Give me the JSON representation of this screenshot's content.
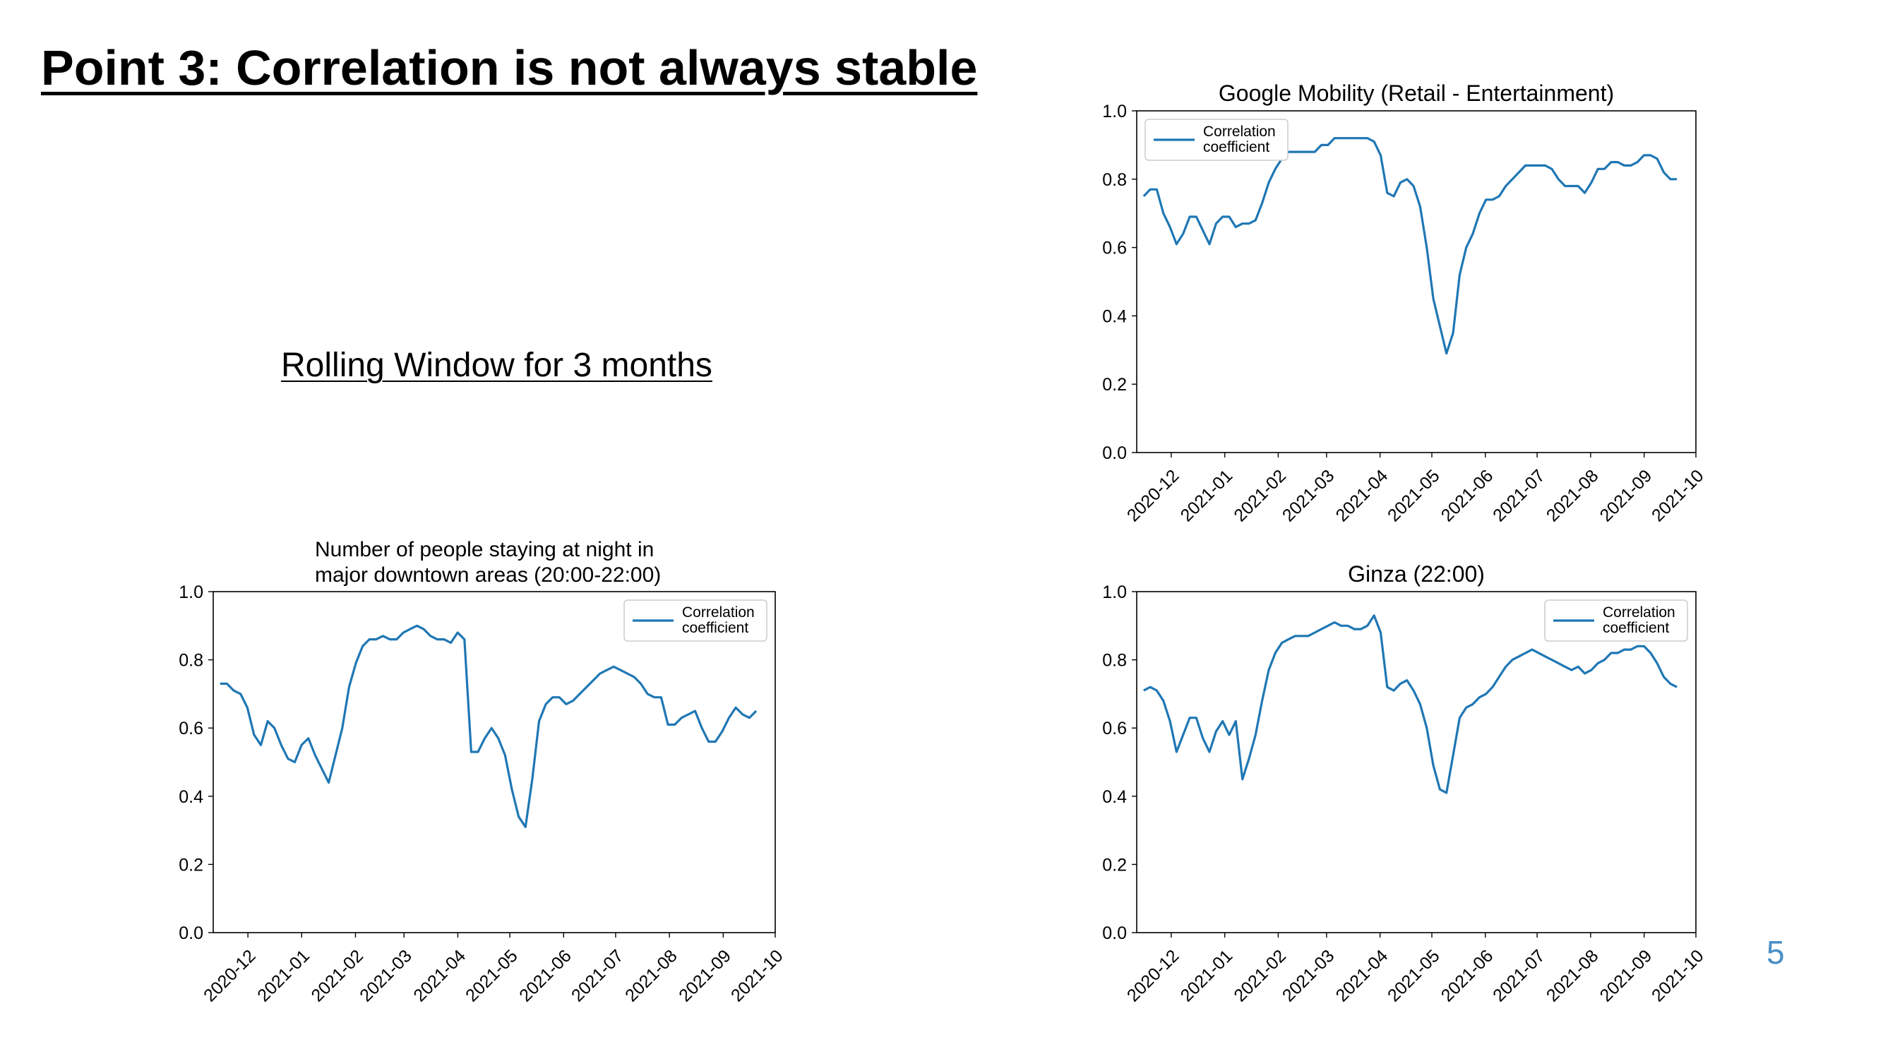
{
  "slide": {
    "title": "Point 3: Correlation is not always stable",
    "subtitle": "Rolling Window for 3 months",
    "page_number": "5"
  },
  "colors": {
    "line": "#1f77b4",
    "page_number": "#4a8fc6"
  },
  "chart_data": [
    {
      "type": "line",
      "title_lines": [
        "Google Mobility (Retail - Entertainment)"
      ],
      "title_align": "center",
      "legend": {
        "lines": [
          "Correlation",
          "coefficient"
        ],
        "position": "upper left"
      },
      "xlabels": [
        "2020-12",
        "2021-01",
        "2021-02",
        "2021-03",
        "2021-04",
        "2021-05",
        "2021-06",
        "2021-07",
        "2021-08",
        "2021-09",
        "2021-10"
      ],
      "x_start": "2020-11-15",
      "x_end": "2021-09-20",
      "xlim": [
        "2020-11-11",
        "2021-10-01"
      ],
      "ylim": [
        0,
        1
      ],
      "yticks": [
        "0.0",
        "0.2",
        "0.4",
        "0.6",
        "0.8",
        "1.0"
      ],
      "grid": false,
      "series": [
        {
          "values": [
            0.75,
            0.77,
            0.77,
            0.7,
            0.66,
            0.61,
            0.64,
            0.69,
            0.69,
            0.65,
            0.61,
            0.67,
            0.69,
            0.69,
            0.66,
            0.67,
            0.67,
            0.68,
            0.73,
            0.79,
            0.83,
            0.86,
            0.88,
            0.88,
            0.88,
            0.88,
            0.88,
            0.9,
            0.9,
            0.92,
            0.92,
            0.92,
            0.92,
            0.92,
            0.92,
            0.91,
            0.87,
            0.76,
            0.75,
            0.79,
            0.8,
            0.78,
            0.72,
            0.6,
            0.45,
            0.37,
            0.29,
            0.35,
            0.52,
            0.6,
            0.64,
            0.7,
            0.74,
            0.74,
            0.75,
            0.78,
            0.8,
            0.82,
            0.84,
            0.84,
            0.84,
            0.84,
            0.83,
            0.8,
            0.78,
            0.78,
            0.78,
            0.76,
            0.79,
            0.83,
            0.83,
            0.85,
            0.85,
            0.84,
            0.84,
            0.85,
            0.87,
            0.87,
            0.86,
            0.82,
            0.8,
            0.8
          ]
        }
      ]
    },
    {
      "type": "line",
      "title_lines": [
        "Number of people staying at night in",
        "major downtown areas (20:00-22:00)"
      ],
      "title_align": "left",
      "legend": {
        "lines": [
          "Correlation",
          "coefficient"
        ],
        "position": "upper right"
      },
      "xlabels": [
        "2020-12",
        "2021-01",
        "2021-02",
        "2021-03",
        "2021-04",
        "2021-05",
        "2021-06",
        "2021-07",
        "2021-08",
        "2021-09",
        "2021-10"
      ],
      "x_start": "2020-11-15",
      "x_end": "2021-09-20",
      "xlim": [
        "2020-11-11",
        "2021-10-01"
      ],
      "ylim": [
        0,
        1
      ],
      "yticks": [
        "0.0",
        "0.2",
        "0.4",
        "0.6",
        "0.8",
        "1.0"
      ],
      "grid": false,
      "series": [
        {
          "values": [
            0.73,
            0.73,
            0.71,
            0.7,
            0.66,
            0.58,
            0.55,
            0.62,
            0.6,
            0.55,
            0.51,
            0.5,
            0.55,
            0.57,
            0.52,
            0.48,
            0.44,
            0.52,
            0.6,
            0.72,
            0.79,
            0.84,
            0.86,
            0.86,
            0.87,
            0.86,
            0.86,
            0.88,
            0.89,
            0.9,
            0.89,
            0.87,
            0.86,
            0.86,
            0.85,
            0.88,
            0.86,
            0.53,
            0.53,
            0.57,
            0.6,
            0.57,
            0.52,
            0.42,
            0.34,
            0.31,
            0.45,
            0.62,
            0.67,
            0.69,
            0.69,
            0.67,
            0.68,
            0.7,
            0.72,
            0.74,
            0.76,
            0.77,
            0.78,
            0.77,
            0.76,
            0.75,
            0.73,
            0.7,
            0.69,
            0.69,
            0.61,
            0.61,
            0.63,
            0.64,
            0.65,
            0.6,
            0.56,
            0.56,
            0.59,
            0.63,
            0.66,
            0.64,
            0.63,
            0.65
          ]
        }
      ]
    },
    {
      "type": "line",
      "title_lines": [
        "Ginza (22:00)"
      ],
      "title_align": "center",
      "legend": {
        "lines": [
          "Correlation",
          "coefficient"
        ],
        "position": "upper right"
      },
      "xlabels": [
        "2020-12",
        "2021-01",
        "2021-02",
        "2021-03",
        "2021-04",
        "2021-05",
        "2021-06",
        "2021-07",
        "2021-08",
        "2021-09",
        "2021-10"
      ],
      "x_start": "2020-11-15",
      "x_end": "2021-09-20",
      "xlim": [
        "2020-11-11",
        "2021-10-01"
      ],
      "ylim": [
        0,
        1
      ],
      "yticks": [
        "0.0",
        "0.2",
        "0.4",
        "0.6",
        "0.8",
        "1.0"
      ],
      "grid": false,
      "series": [
        {
          "values": [
            0.71,
            0.72,
            0.71,
            0.68,
            0.62,
            0.53,
            0.58,
            0.63,
            0.63,
            0.57,
            0.53,
            0.59,
            0.62,
            0.58,
            0.62,
            0.45,
            0.51,
            0.58,
            0.68,
            0.77,
            0.82,
            0.85,
            0.86,
            0.87,
            0.87,
            0.87,
            0.88,
            0.89,
            0.9,
            0.91,
            0.9,
            0.9,
            0.89,
            0.89,
            0.9,
            0.93,
            0.88,
            0.72,
            0.71,
            0.73,
            0.74,
            0.71,
            0.67,
            0.6,
            0.49,
            0.42,
            0.41,
            0.52,
            0.63,
            0.66,
            0.67,
            0.69,
            0.7,
            0.72,
            0.75,
            0.78,
            0.8,
            0.81,
            0.82,
            0.83,
            0.82,
            0.81,
            0.8,
            0.79,
            0.78,
            0.77,
            0.78,
            0.76,
            0.77,
            0.79,
            0.8,
            0.82,
            0.82,
            0.83,
            0.83,
            0.84,
            0.84,
            0.82,
            0.79,
            0.75,
            0.73,
            0.72
          ]
        }
      ]
    }
  ]
}
